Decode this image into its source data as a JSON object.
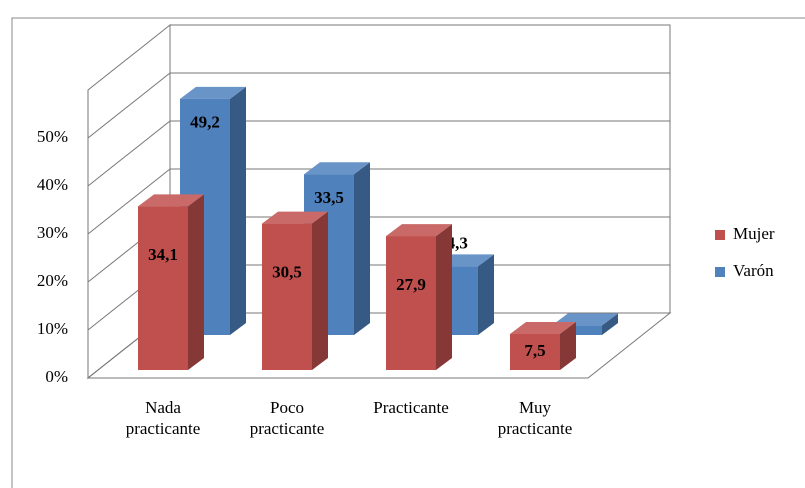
{
  "chart_data": {
    "type": "bar3d",
    "categories": [
      "Nada practicante",
      "Poco practicante",
      "Practicante",
      "Muy practicante"
    ],
    "series": [
      {
        "name": "Mujer",
        "color": "#c0504d",
        "values": [
          34.1,
          30.5,
          27.9,
          7.5
        ],
        "value_labels": [
          "34,1",
          "30,5",
          "27,9",
          "7,5"
        ]
      },
      {
        "name": "Varón",
        "color": "#4f81bd",
        "values": [
          49.2,
          33.5,
          14.3,
          2
        ],
        "value_labels": [
          "49,2",
          "33,5",
          "14,3",
          null
        ]
      }
    ],
    "ylim": [
      0,
      60
    ],
    "yticks": [
      {
        "value": 0,
        "label": "0%"
      },
      {
        "value": 10,
        "label": "10%"
      },
      {
        "value": 20,
        "label": "20%"
      },
      {
        "value": 30,
        "label": "30%"
      },
      {
        "value": 40,
        "label": "40%"
      },
      {
        "value": 50,
        "label": "50%"
      }
    ],
    "grid": true,
    "legend": "right"
  }
}
